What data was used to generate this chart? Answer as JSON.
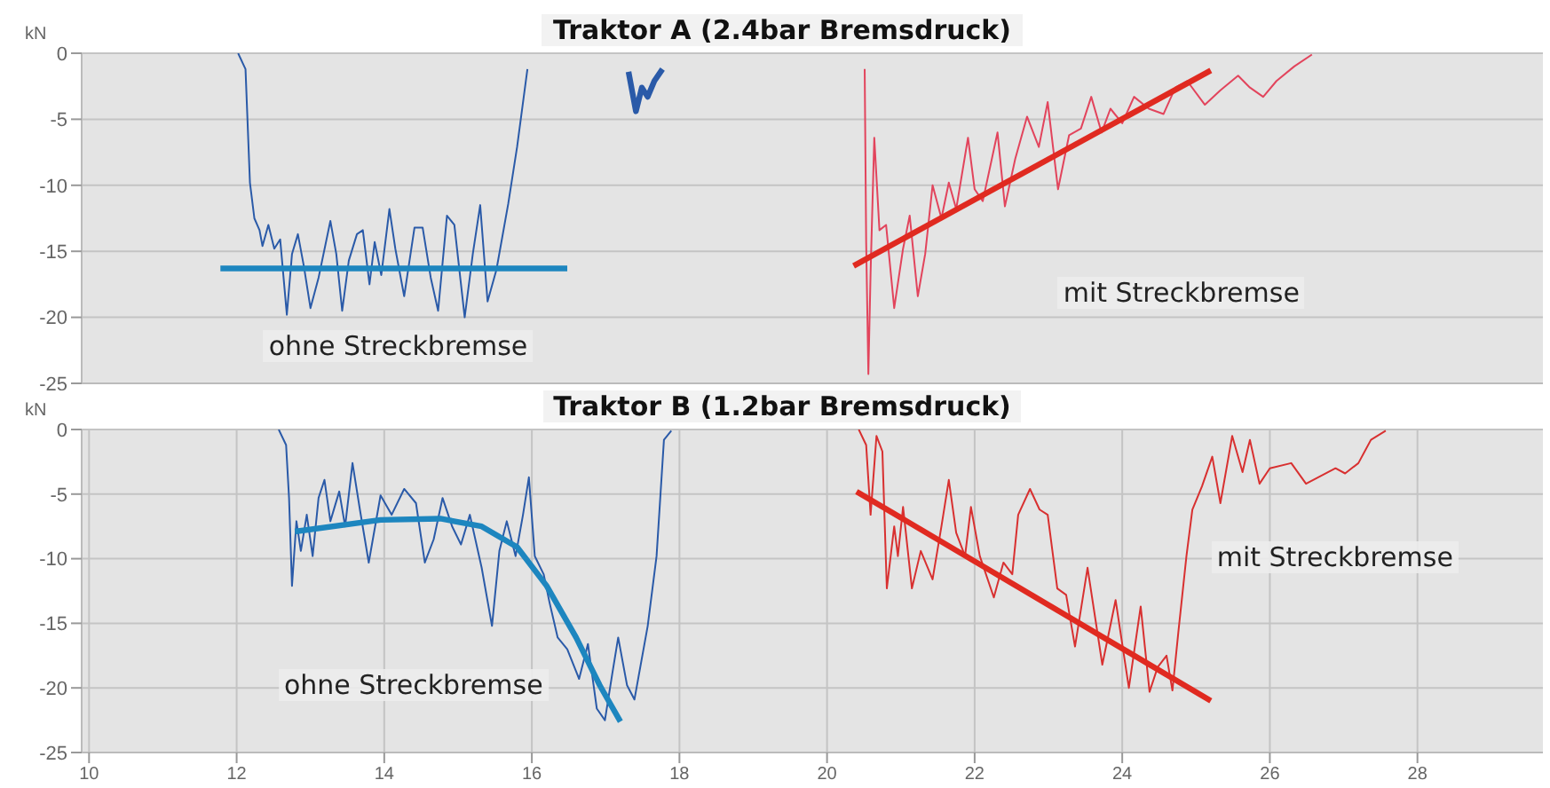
{
  "chart_data": [
    {
      "type": "line",
      "title": "Traktor A (2.4bar Bremsdruck)",
      "ylabel": "kN",
      "xlim": [
        9.9,
        29.7
      ],
      "xticks": [
        10,
        12,
        14,
        16,
        18,
        20,
        22,
        24,
        26,
        28
      ],
      "ylim": [
        -25,
        0
      ],
      "yticks": [
        -25,
        -20,
        -15,
        -10,
        -5,
        0
      ],
      "grid": true,
      "tick_labels": "y",
      "annotations": [
        "ohne Streckbremse",
        "mit Streckbremse"
      ],
      "series": [
        {
          "color": "#2a5aa8",
          "x": [
            12.02,
            12.12,
            12.18,
            12.24,
            12.31,
            12.35,
            12.43,
            12.51,
            12.59,
            12.68,
            12.75,
            12.83,
            12.91,
            13.0,
            13.11,
            13.27,
            13.35,
            13.43,
            13.52,
            13.63,
            13.71,
            13.8,
            13.87,
            13.96,
            14.07,
            14.15,
            14.27,
            14.41,
            14.52,
            14.63,
            14.73,
            14.85,
            14.95,
            15.09,
            15.2,
            15.3,
            15.4,
            15.52,
            15.68,
            15.8,
            15.94
          ],
          "values": [
            0,
            -1.2,
            -9.8,
            -12.5,
            -13.4,
            -14.6,
            -13,
            -14.8,
            -14.1,
            -19.8,
            -15.2,
            -13.7,
            -16.1,
            -19.3,
            -17,
            -12.7,
            -15.2,
            -19.5,
            -15.7,
            -13.7,
            -13.4,
            -17.5,
            -14.3,
            -16.8,
            -11.8,
            -14.8,
            -18.4,
            -13.2,
            -13.2,
            -17,
            -19.5,
            -12.3,
            -13,
            -20,
            -15.2,
            -11.5,
            -18.8,
            -16.4,
            -11.4,
            -7.1,
            -1.2
          ]
        },
        {
          "color": "#2a5aa8",
          "x": [
            17.31,
            17.41,
            17.49,
            17.57,
            17.66,
            17.77
          ],
          "values": [
            -1.4,
            -4.4,
            -2.6,
            -3.3,
            -2.1,
            -1.2
          ]
        },
        {
          "color": "#1d86bf",
          "x": [
            11.78,
            16.48
          ],
          "values": [
            -16.3,
            -16.3
          ]
        },
        {
          "color": "#e2445c",
          "x": [
            20.51,
            20.53,
            20.56,
            20.59,
            20.64,
            20.71,
            20.8,
            20.91,
            21.03,
            21.12,
            21.23,
            21.33,
            21.43,
            21.55,
            21.65,
            21.75,
            21.91,
            22.0,
            22.11,
            22.31,
            22.41,
            22.55,
            22.71,
            22.87,
            22.99,
            23.13,
            23.28,
            23.44,
            23.58,
            23.72,
            23.84,
            24.0,
            24.16,
            24.36,
            24.56,
            24.72,
            24.88,
            25.12,
            25.33,
            25.57,
            25.73,
            25.91,
            26.09,
            26.33,
            26.57
          ],
          "values": [
            -1.2,
            -14.3,
            -24.3,
            -16.6,
            -6.4,
            -13.4,
            -13,
            -19.3,
            -14.8,
            -12.3,
            -18.4,
            -15.2,
            -10,
            -12.5,
            -9.8,
            -11.8,
            -6.4,
            -10.3,
            -11.2,
            -6,
            -11.6,
            -8,
            -4.8,
            -7.1,
            -3.7,
            -10.3,
            -6.2,
            -5.7,
            -3.3,
            -6,
            -4.2,
            -5.3,
            -3.3,
            -4.2,
            -4.6,
            -2.6,
            -2.1,
            -3.9,
            -2.8,
            -1.7,
            -2.6,
            -3.3,
            -2.1,
            -1,
            -0.1
          ]
        },
        {
          "color": "#e02a20",
          "x": [
            20.36,
            25.2
          ],
          "values": [
            -16.1,
            -1.3
          ]
        }
      ]
    },
    {
      "type": "line",
      "title": "Traktor B (1.2bar Bremsdruck)",
      "ylabel": "kN",
      "xlim": [
        9.9,
        29.7
      ],
      "xticks": [
        10,
        12,
        14,
        16,
        18,
        20,
        22,
        24,
        26,
        28
      ],
      "ylim": [
        -25,
        0
      ],
      "yticks": [
        -25,
        -20,
        -15,
        -10,
        -5,
        0
      ],
      "grid": true,
      "annotations": [
        "ohne Streckbremse",
        "mit Streckbremse"
      ],
      "series": [
        {
          "color": "#2a5aa8",
          "x": [
            12.57,
            12.67,
            12.71,
            12.75,
            12.81,
            12.87,
            12.95,
            13.03,
            13.11,
            13.19,
            13.27,
            13.39,
            13.47,
            13.57,
            13.67,
            13.79,
            13.95,
            14.1,
            14.27,
            14.43,
            14.55,
            14.67,
            14.79,
            14.92,
            15.04,
            15.16,
            15.32,
            15.46,
            15.56,
            15.66,
            15.78,
            15.88,
            15.96,
            16.04,
            16.16,
            16.24,
            16.35,
            16.48,
            16.64,
            16.76,
            16.88,
            16.99,
            17.09,
            17.17,
            17.29,
            17.39,
            17.57,
            17.69,
            17.79,
            17.89
          ],
          "values": [
            0,
            -1.2,
            -5.3,
            -12.1,
            -7.1,
            -9.4,
            -6.6,
            -9.8,
            -5.3,
            -3.9,
            -7.1,
            -4.8,
            -7.5,
            -2.6,
            -6.2,
            -10.3,
            -5.1,
            -6.6,
            -4.6,
            -5.7,
            -10.3,
            -8.5,
            -5.3,
            -7.5,
            -8.9,
            -6.6,
            -10.7,
            -15.2,
            -9.4,
            -7.1,
            -9.8,
            -6.6,
            -3.7,
            -9.8,
            -11.2,
            -13.4,
            -16.1,
            -17,
            -19.3,
            -16.6,
            -21.6,
            -22.5,
            -18.9,
            -16.1,
            -19.8,
            -20.9,
            -15.2,
            -9.8,
            -0.8,
            -0.1
          ]
        },
        {
          "color": "#1d86bf",
          "x": [
            12.79,
            13.95,
            14.76,
            15.32,
            15.8,
            16.2,
            16.6,
            16.92,
            17.2
          ],
          "values": [
            -7.9,
            -7,
            -6.9,
            -7.5,
            -9.1,
            -12.1,
            -16.1,
            -19.8,
            -22.6
          ]
        },
        {
          "color": "#d83030",
          "x": [
            20.43,
            20.53,
            20.59,
            20.67,
            20.75,
            20.81,
            20.91,
            20.96,
            21.03,
            21.15,
            21.27,
            21.43,
            21.55,
            21.65,
            21.75,
            21.87,
            21.95,
            22.07,
            22.26,
            22.39,
            22.51,
            22.59,
            22.75,
            22.88,
            22.99,
            23.12,
            23.24,
            23.36,
            23.53,
            23.73,
            23.91,
            24.09,
            24.25,
            24.37,
            24.48,
            24.6,
            24.68,
            24.76,
            24.87,
            24.95,
            25.08,
            25.22,
            25.33,
            25.49,
            25.63,
            25.73,
            25.86,
            26.0,
            26.29,
            26.49,
            26.89,
            27.02,
            27.2,
            27.37,
            27.57
          ],
          "values": [
            0,
            -1.2,
            -6.6,
            -0.5,
            -1.7,
            -12.3,
            -7.5,
            -9.8,
            -6,
            -12.3,
            -9.4,
            -11.6,
            -7.5,
            -3.9,
            -8,
            -9.8,
            -6,
            -9.8,
            -13,
            -10.3,
            -11.2,
            -6.6,
            -4.6,
            -6.2,
            -6.6,
            -12.3,
            -12.8,
            -16.8,
            -10.7,
            -18.2,
            -13.2,
            -20,
            -13.7,
            -20.3,
            -18.4,
            -17.5,
            -20.2,
            -15.7,
            -9.8,
            -6.2,
            -4.4,
            -2.1,
            -5.7,
            -0.5,
            -3.3,
            -0.8,
            -4.2,
            -3,
            -2.6,
            -4.2,
            -3,
            -3.4,
            -2.6,
            -0.8,
            -0.1
          ]
        },
        {
          "color": "#e02a20",
          "x": [
            20.4,
            25.2
          ],
          "values": [
            -4.8,
            -21
          ]
        }
      ]
    }
  ]
}
